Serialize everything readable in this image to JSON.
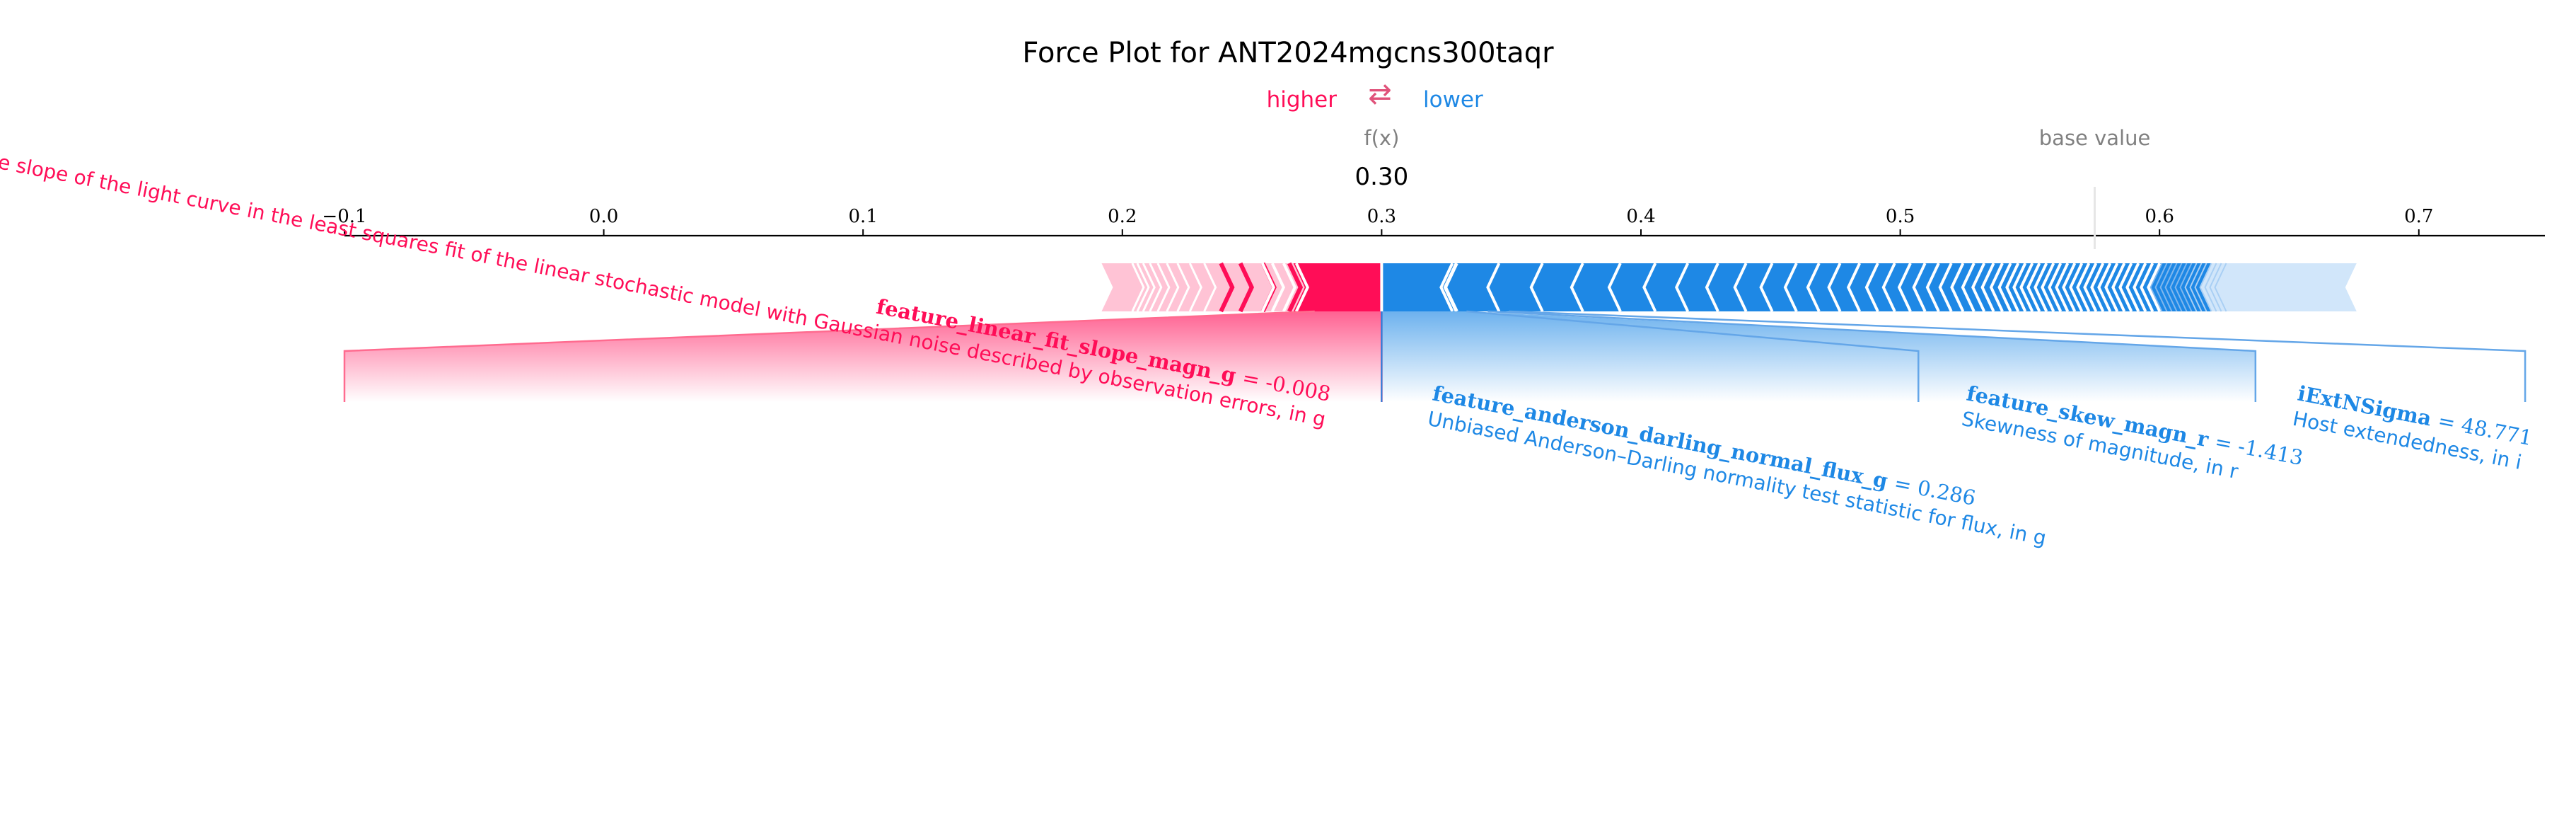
{
  "chart_data": {
    "type": "force_plot",
    "title": "Force Plot for ANT2024mgcns300taqr",
    "legend": {
      "higher": "higher",
      "arrows": "⇄",
      "lower": "lower"
    },
    "fx_label": "f(x)",
    "fx_value": 0.3,
    "fx_text": "0.30",
    "base_value_label": "base value",
    "base_value": 0.575,
    "xlim": [
      -0.1,
      0.75
    ],
    "ticks": [
      {
        "value": -0.1,
        "label": "−0.1"
      },
      {
        "value": 0.0,
        "label": "0.0"
      },
      {
        "value": 0.1,
        "label": "0.1"
      },
      {
        "value": 0.2,
        "label": "0.2"
      },
      {
        "value": 0.3,
        "label": "0.3"
      },
      {
        "value": 0.4,
        "label": "0.4"
      },
      {
        "value": 0.5,
        "label": "0.5"
      },
      {
        "value": 0.6,
        "label": "0.6"
      },
      {
        "value": 0.7,
        "label": "0.7"
      }
    ],
    "positive_bar": {
      "start": 0.192,
      "end": 0.3,
      "strong_start": 0.266
    },
    "negative_bar": {
      "start": 0.3,
      "end": 0.676,
      "strong_end": 0.62
    },
    "labeled_features": [
      {
        "feature": "feature_linear_fit_slope_magn_g",
        "value_text": "= -0.008",
        "description": "The slope of the light curve in the least squares fit of the linear stochastic model with Gaussian noise described by observation errors, in g",
        "direction": "higher",
        "anchor_x": -0.1
      },
      {
        "feature": "feature_anderson_darling_normal_flux_g",
        "value_text": "= 0.286",
        "description": "Unbiased Anderson–Darling normality test statistic for flux, in g",
        "direction": "lower",
        "anchor_x": 0.3
      },
      {
        "feature": "feature_skew_magn_r",
        "value_text": "= -1.413",
        "description": "Skewness of magnitude, in r",
        "direction": "lower",
        "anchor_x": 0.507
      },
      {
        "feature": "iExtNSigma",
        "value_text": "= 48.771",
        "description": "Host extendedness, in i",
        "direction": "lower",
        "anchor_x": 0.637
      }
    ],
    "colors": {
      "positive": "#ff0d57",
      "positive_light": "#ffc3d5",
      "negative": "#1e88e5",
      "negative_light": "#d1e6fa"
    }
  }
}
